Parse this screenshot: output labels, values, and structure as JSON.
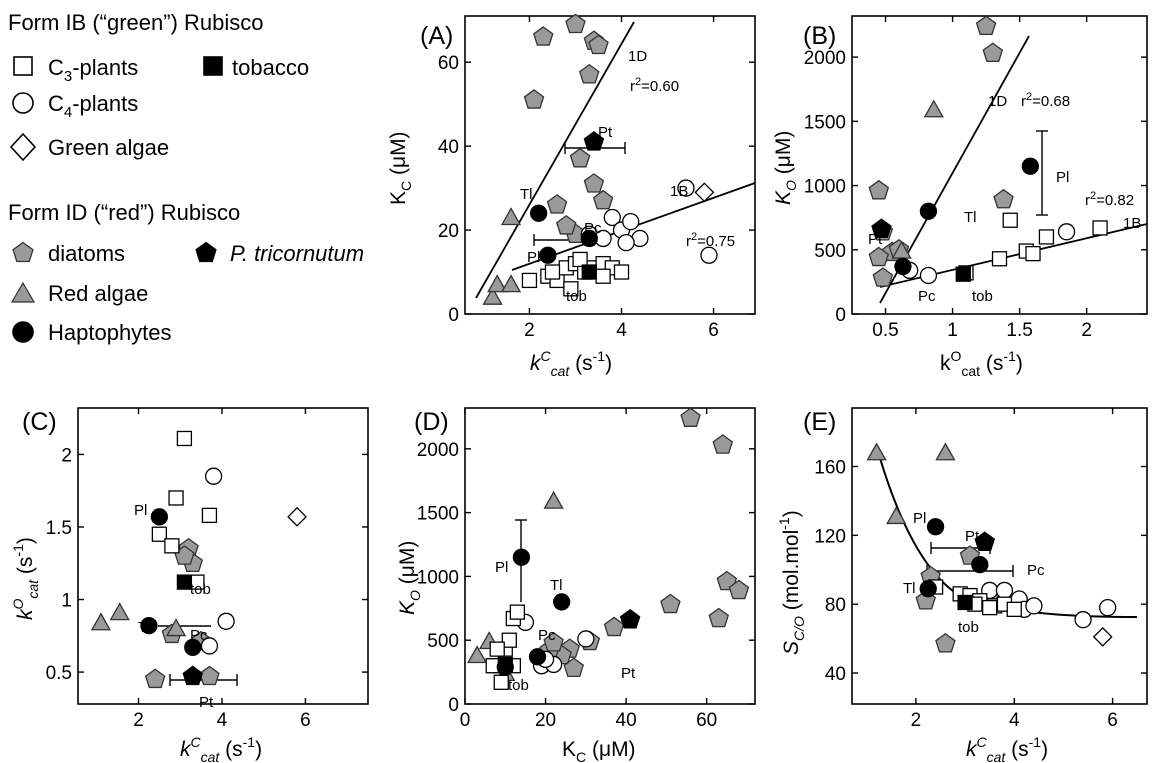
{
  "legend": {
    "form_ib_title": "Form IB (“green”) Rubisco",
    "c3_label": "C3-plants",
    "tobacco_label": "tobacco",
    "c4_label": "C4-plants",
    "green_algae_label": "Green algae",
    "form_id_title": "Form ID (“red”) Rubisco",
    "diatoms_label": "diatoms",
    "ptri_label": "P. tricornutum",
    "red_algae_label": "Red algae",
    "hapto_label": "Haptophytes"
  },
  "colors": {
    "grey_fill": "#9a9a9a",
    "black": "#000000",
    "white": "#ffffff"
  },
  "chart_data": [
    {
      "panel": "(A)",
      "type": "scatter",
      "xlabel": "kCcat (s-1)",
      "ylabel": "KC (μM)",
      "xlim": [
        0.6,
        6.9
      ],
      "ylim": [
        0,
        71
      ],
      "xticks": [
        2,
        4,
        6
      ],
      "yticks": [
        0,
        20,
        40,
        60
      ],
      "annotations": [
        "Pt",
        "Tl",
        "Pc",
        "Pl",
        "tob",
        "1D",
        "1B",
        "r2=0.60",
        "r2=0.75"
      ],
      "fits": [
        {
          "name": "1D",
          "r2": "0.60"
        },
        {
          "name": "1B",
          "r2": "0.75"
        }
      ],
      "series": [
        {
          "name": "C3-plants",
          "points": [
            [
              2.0,
              8
            ],
            [
              2.4,
              9
            ],
            [
              2.6,
              8
            ],
            [
              2.8,
              11
            ],
            [
              3.0,
              12
            ],
            [
              3.2,
              10
            ],
            [
              3.4,
              11
            ],
            [
              3.6,
              12
            ],
            [
              3.8,
              11
            ],
            [
              4.0,
              10
            ],
            [
              2.9,
              6
            ],
            [
              3.1,
              13
            ],
            [
              2.5,
              10
            ],
            [
              3.6,
              9
            ]
          ]
        },
        {
          "name": "tobacco",
          "points": [
            [
              3.3,
              10
            ]
          ]
        },
        {
          "name": "C4-plants",
          "points": [
            [
              3.3,
              19
            ],
            [
              3.6,
              18
            ],
            [
              3.8,
              23
            ],
            [
              4.0,
              20
            ],
            [
              4.2,
              22
            ],
            [
              4.4,
              18
            ],
            [
              4.1,
              17
            ],
            [
              5.4,
              30
            ],
            [
              5.9,
              14
            ]
          ]
        },
        {
          "name": "Green algae",
          "points": [
            [
              5.8,
              29
            ]
          ]
        },
        {
          "name": "diatoms",
          "points": [
            [
              2.3,
              66
            ],
            [
              3.0,
              69
            ],
            [
              3.4,
              65
            ],
            [
              3.5,
              64
            ],
            [
              3.3,
              57
            ],
            [
              2.1,
              51
            ],
            [
              3.1,
              37
            ],
            [
              3.4,
              31
            ],
            [
              3.6,
              27
            ],
            [
              2.6,
              26
            ],
            [
              3.0,
              19
            ],
            [
              2.8,
              21
            ]
          ]
        },
        {
          "name": "P. tricornutum",
          "points": [
            [
              3.4,
              41
            ]
          ]
        },
        {
          "name": "Red algae",
          "points": [
            [
              1.2,
              4
            ],
            [
              1.3,
              7
            ],
            [
              1.6,
              7
            ],
            [
              1.6,
              23
            ]
          ]
        },
        {
          "name": "Haptophytes",
          "points": [
            [
              2.2,
              24
            ],
            [
              2.4,
              14
            ],
            [
              3.3,
              18
            ]
          ]
        }
      ]
    },
    {
      "panel": "(B)",
      "type": "scatter",
      "xlabel": "kOcat (s-1)",
      "ylabel": "KO (μM)",
      "xlim": [
        0.25,
        2.45
      ],
      "ylim": [
        0,
        2320
      ],
      "xticks": [
        0.5,
        1.0,
        1.5,
        2.0
      ],
      "yticks": [
        0,
        500,
        1000,
        1500,
        2000
      ],
      "annotations": [
        "Pt",
        "Tl",
        "Pl",
        "Pc",
        "tob",
        "1D",
        "1B",
        "r2=0.68",
        "r2=0.82"
      ],
      "fits": [
        {
          "name": "1D",
          "r2": "0.68"
        },
        {
          "name": "1B",
          "r2": "0.82"
        }
      ],
      "series": [
        {
          "name": "C3-plants",
          "points": [
            [
              1.1,
              320
            ],
            [
              1.35,
              430
            ],
            [
              1.43,
              730
            ],
            [
              1.55,
              490
            ],
            [
              1.6,
              470
            ],
            [
              1.7,
              600
            ],
            [
              2.1,
              670
            ]
          ]
        },
        {
          "name": "tobacco",
          "points": [
            [
              1.08,
              310
            ]
          ]
        },
        {
          "name": "C4-plants",
          "points": [
            [
              0.82,
              300
            ],
            [
              0.68,
              340
            ],
            [
              1.85,
              640
            ]
          ]
        },
        {
          "name": "diatoms",
          "points": [
            [
              0.45,
              960
            ],
            [
              1.25,
              2240
            ],
            [
              1.3,
              2030
            ],
            [
              1.38,
              890
            ],
            [
              0.48,
              640
            ],
            [
              0.55,
              480
            ],
            [
              0.45,
              440
            ],
            [
              0.48,
              280
            ],
            [
              0.6,
              500
            ]
          ]
        },
        {
          "name": "P. tricornutum",
          "points": [
            [
              0.47,
              660
            ]
          ]
        },
        {
          "name": "Red algae",
          "points": [
            [
              0.86,
              1590
            ],
            [
              0.62,
              490
            ]
          ]
        },
        {
          "name": "Haptophytes",
          "points": [
            [
              0.63,
              370
            ],
            [
              0.82,
              800
            ],
            [
              1.58,
              1150
            ]
          ]
        }
      ]
    },
    {
      "panel": "(C)",
      "type": "scatter",
      "xlabel": "kCcat (s-1)",
      "ylabel": "kOcat (s-1)",
      "xlim": [
        0.55,
        7.5
      ],
      "ylim": [
        0.28,
        2.32
      ],
      "xticks": [
        2,
        4,
        6
      ],
      "yticks": [
        0.5,
        1.0,
        1.5,
        2.0
      ],
      "annotations": [
        "Pl",
        "tob",
        "Pc",
        "Tl",
        "Pt"
      ],
      "series": [
        {
          "name": "C3-plants",
          "points": [
            [
              3.1,
              2.11
            ],
            [
              2.9,
              1.7
            ],
            [
              3.7,
              1.58
            ],
            [
              2.5,
              1.45
            ],
            [
              2.8,
              1.37
            ],
            [
              3.4,
              1.12
            ]
          ]
        },
        {
          "name": "tobacco",
          "points": [
            [
              3.1,
              1.12
            ]
          ]
        },
        {
          "name": "C4-plants",
          "points": [
            [
              3.8,
              1.85
            ],
            [
              4.1,
              0.85
            ],
            [
              3.7,
              0.68
            ]
          ]
        },
        {
          "name": "Green algae",
          "points": [
            [
              5.8,
              1.57
            ]
          ]
        },
        {
          "name": "diatoms",
          "points": [
            [
              3.2,
              1.35
            ],
            [
              3.3,
              1.25
            ],
            [
              3.1,
              1.3
            ],
            [
              2.8,
              0.76
            ],
            [
              2.4,
              0.45
            ],
            [
              3.5,
              0.71
            ],
            [
              3.7,
              0.47
            ]
          ]
        },
        {
          "name": "P. tricornutum",
          "points": [
            [
              3.3,
              0.47
            ]
          ]
        },
        {
          "name": "Red algae",
          "points": [
            [
              1.1,
              0.84
            ],
            [
              1.55,
              0.91
            ],
            [
              2.9,
              0.8
            ]
          ]
        },
        {
          "name": "Haptophytes",
          "points": [
            [
              2.5,
              1.57
            ],
            [
              2.25,
              0.82
            ],
            [
              3.3,
              0.67
            ]
          ]
        }
      ]
    },
    {
      "panel": "(D)",
      "type": "scatter",
      "xlabel": "KC (μM)",
      "ylabel": "KO (μM)",
      "xlim": [
        0,
        72
      ],
      "ylim": [
        0,
        2320
      ],
      "xticks": [
        0,
        20,
        40,
        60
      ],
      "yticks": [
        0,
        500,
        1000,
        1500,
        2000
      ],
      "annotations": [
        "Pl",
        "Tl",
        "Pc",
        "Pt",
        "tob"
      ],
      "series": [
        {
          "name": "C3-plants",
          "points": [
            [
              12,
              670
            ],
            [
              13,
              720
            ],
            [
              8,
              300
            ],
            [
              10,
              430
            ],
            [
              11,
              500
            ],
            [
              8,
              430
            ],
            [
              9,
              170
            ],
            [
              12,
              300
            ],
            [
              7,
              300
            ]
          ]
        },
        {
          "name": "tobacco",
          "points": [
            [
              10,
              310
            ]
          ]
        },
        {
          "name": "C4-plants",
          "points": [
            [
              15,
              640
            ],
            [
              19,
              300
            ],
            [
              22,
              310
            ],
            [
              30,
              510
            ],
            [
              20,
              350
            ]
          ]
        },
        {
          "name": "diatoms",
          "points": [
            [
              56,
              2240
            ],
            [
              64,
              2030
            ],
            [
              65,
              960
            ],
            [
              68,
              890
            ],
            [
              63,
              670
            ],
            [
              51,
              780
            ],
            [
              37,
              600
            ],
            [
              31,
              490
            ],
            [
              26,
              430
            ],
            [
              27,
              280
            ],
            [
              24,
              380
            ],
            [
              21,
              420
            ],
            [
              22,
              480
            ]
          ]
        },
        {
          "name": "P. tricornutum",
          "points": [
            [
              41,
              660
            ]
          ]
        },
        {
          "name": "Red algae",
          "points": [
            [
              22,
              1590
            ],
            [
              3,
              380
            ],
            [
              6,
              490
            ],
            [
              10,
              240
            ]
          ]
        },
        {
          "name": "Haptophytes",
          "points": [
            [
              14,
              1150
            ],
            [
              24,
              800
            ],
            [
              18,
              370
            ],
            [
              10,
              290
            ]
          ]
        }
      ]
    },
    {
      "panel": "(E)",
      "type": "scatter",
      "xlabel": "kCcat (s-1)",
      "ylabel": "SC/O (mol.mol-1)",
      "xlim": [
        0.7,
        6.7
      ],
      "ylim": [
        22,
        194
      ],
      "xticks": [
        2,
        4,
        6
      ],
      "yticks": [
        40,
        80,
        120,
        160
      ],
      "annotations": [
        "Pl",
        "Pt",
        "Pc",
        "Tl",
        "tob"
      ],
      "fit": "hyperbolic",
      "series": [
        {
          "name": "C3-plants",
          "points": [
            [
              2.4,
              90
            ],
            [
              2.9,
              86
            ],
            [
              3.1,
              85
            ],
            [
              3.3,
              82
            ],
            [
              3.6,
              79
            ],
            [
              3.8,
              80
            ],
            [
              4.0,
              77
            ],
            [
              3.5,
              78
            ],
            [
              3.2,
              80
            ]
          ]
        },
        {
          "name": "tobacco",
          "points": [
            [
              3.0,
              81
            ]
          ]
        },
        {
          "name": "C4-plants",
          "points": [
            [
              3.5,
              88
            ],
            [
              3.8,
              88
            ],
            [
              4.1,
              83
            ],
            [
              4.2,
              77
            ],
            [
              4.4,
              79
            ],
            [
              5.4,
              71
            ],
            [
              5.9,
              78
            ]
          ]
        },
        {
          "name": "Green algae",
          "points": [
            [
              5.8,
              61
            ]
          ]
        },
        {
          "name": "diatoms",
          "points": [
            [
              2.3,
              96
            ],
            [
              2.2,
              82
            ],
            [
              2.6,
              57
            ],
            [
              3.1,
              108
            ],
            [
              3.6,
              80
            ],
            [
              3.7,
              82
            ]
          ]
        },
        {
          "name": "P. tricornutum",
          "points": [
            [
              3.4,
              116
            ]
          ]
        },
        {
          "name": "Red algae",
          "points": [
            [
              1.2,
              168
            ],
            [
              1.6,
              131
            ],
            [
              2.6,
              168
            ]
          ]
        },
        {
          "name": "Haptophytes",
          "points": [
            [
              2.4,
              125
            ],
            [
              2.25,
              89
            ],
            [
              3.3,
              103
            ]
          ]
        }
      ]
    }
  ]
}
